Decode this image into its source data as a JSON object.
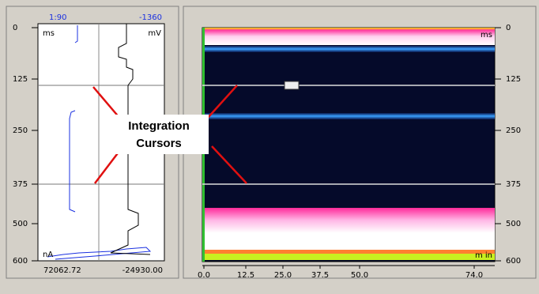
{
  "left_panel": {
    "top_left": "1:90",
    "top_right": "-1360",
    "unit_top_left": "ms",
    "unit_top_right": "mV",
    "unit_bottom_left": "nA",
    "y_ticks": [
      "0",
      "125",
      "250",
      "375",
      "500",
      "600"
    ],
    "x_labels": [
      "72062.72",
      "-24930.00"
    ]
  },
  "annotation": {
    "lines": [
      "Integration",
      "Cursors"
    ]
  },
  "right_panel": {
    "unit_top": "ms",
    "unit_bottom": "m in",
    "y_ticks": [
      "0",
      "125",
      "250",
      "375",
      "500",
      "600"
    ],
    "x_ticks": [
      "0.0",
      "12.5",
      "25.0",
      "37.5",
      "50.0",
      "74.0"
    ]
  }
}
